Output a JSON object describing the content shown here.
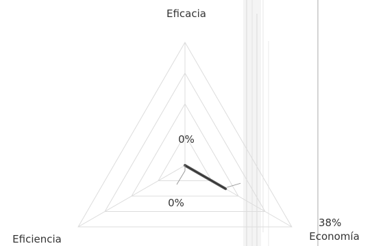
{
  "chart_data": {
    "type": "radar",
    "axes": [
      "Eficacia",
      "Economía",
      "Eficiencia"
    ],
    "values": [
      0,
      38,
      0
    ],
    "value_labels": [
      "0%",
      "38%",
      "0%"
    ],
    "scale": {
      "min": 0,
      "max": 100,
      "rings": 4
    },
    "grid": true,
    "legend": "none",
    "colors": {
      "series_line": "#555555",
      "series_line_dark": "#333333",
      "grid": "#dcdcdc",
      "labels": "#333333"
    }
  }
}
